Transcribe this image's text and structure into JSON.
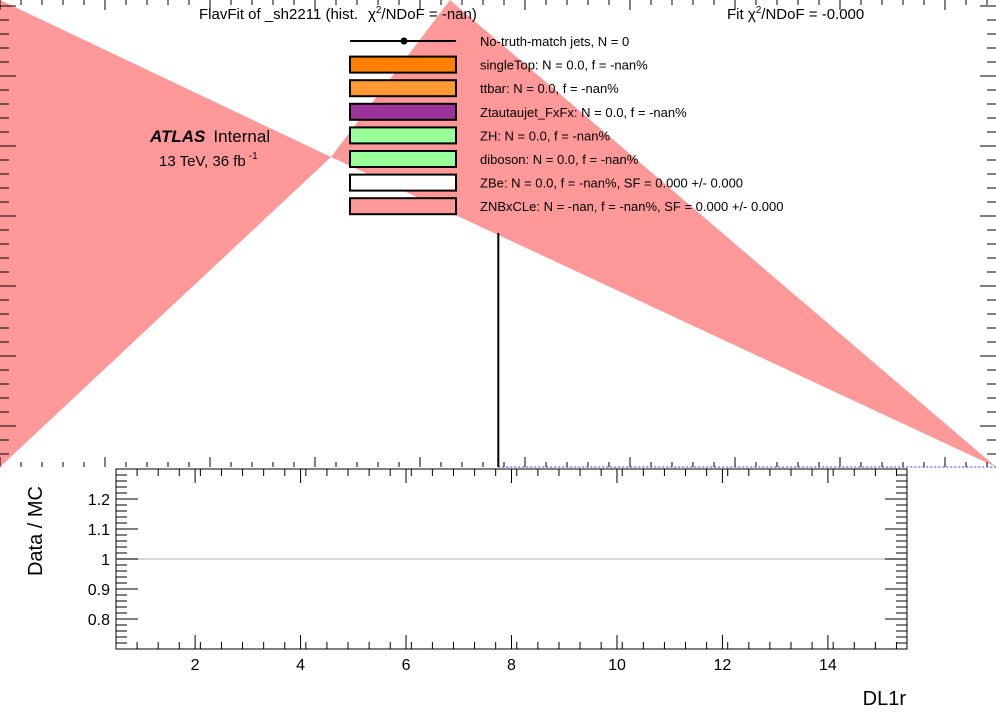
{
  "header": {
    "title_prefix": "FlavFit of _sh2211 (hist.",
    "title_chi": "χ",
    "title_sup": "2",
    "title_suffix": "/NDoF = -nan)",
    "fit_prefix": "Fit ",
    "fit_chi": "χ",
    "fit_sup": "2",
    "fit_suffix": "/NDoF = -0.000"
  },
  "atlas": {
    "label_bold": "ATLAS",
    "label_rest": "Internal",
    "energy": "13 TeV,  36 fb",
    "lumi_sup": "-1"
  },
  "legend": [
    {
      "label": "No-truth-match jets, N =   0",
      "style": "marker",
      "color": "#000000"
    },
    {
      "label": "singleTop: N = 0.0, f = -nan%",
      "style": "box",
      "color": "#ff7f00"
    },
    {
      "label": "ttbar: N = 0.0, f = -nan%",
      "style": "box",
      "color": "#ff9933"
    },
    {
      "label": "Ztautaujet_FxFx: N = 0.0, f = -nan%",
      "style": "box",
      "color": "#993399"
    },
    {
      "label": "ZH: N = 0.0, f = -nan%",
      "style": "box",
      "color": "#99ff99"
    },
    {
      "label": "diboson: N = 0.0, f = -nan%",
      "style": "box",
      "color": "#99ff99"
    },
    {
      "label": "ZBe: N = 0.0, f = -nan%, SF = 0.000 +/- 0.000",
      "style": "box",
      "color": "#ffffff"
    },
    {
      "label": "ZNBxCLe: N = -nan, f = -nan%, SF = 0.000 +/- 0.000",
      "style": "box",
      "color": "#ff9999"
    }
  ],
  "chart_data": [
    {
      "type": "area",
      "panel": "main",
      "title": "",
      "xlabel": "",
      "ylabel": "",
      "fill_color": "#ff9999",
      "series": [
        {
          "name": "ZNBxCLe",
          "shape": "crossed-triangles",
          "color": "#ff9999"
        }
      ],
      "vertical_line_x": 7.75,
      "grid": false
    },
    {
      "type": "line",
      "panel": "ratio",
      "ylabel": "Data / MC",
      "xlabel": "DL1r",
      "xlim": [
        0.5,
        15.5
      ],
      "ylim": [
        0.7,
        1.3
      ],
      "x_ticks": [
        2,
        4,
        6,
        8,
        10,
        12,
        14
      ],
      "x_tick_labels": [
        "2",
        "4",
        "6",
        "8",
        "10",
        "12",
        "14"
      ],
      "y_ticks": [
        0.8,
        0.9,
        1.0,
        1.1,
        1.2
      ],
      "y_tick_labels": [
        "0.8",
        "0.9",
        "1",
        "1.1",
        "1.2"
      ],
      "reference_line_y": 1.0,
      "reference_line_color": "#c8c8c8",
      "grid": false
    }
  ]
}
